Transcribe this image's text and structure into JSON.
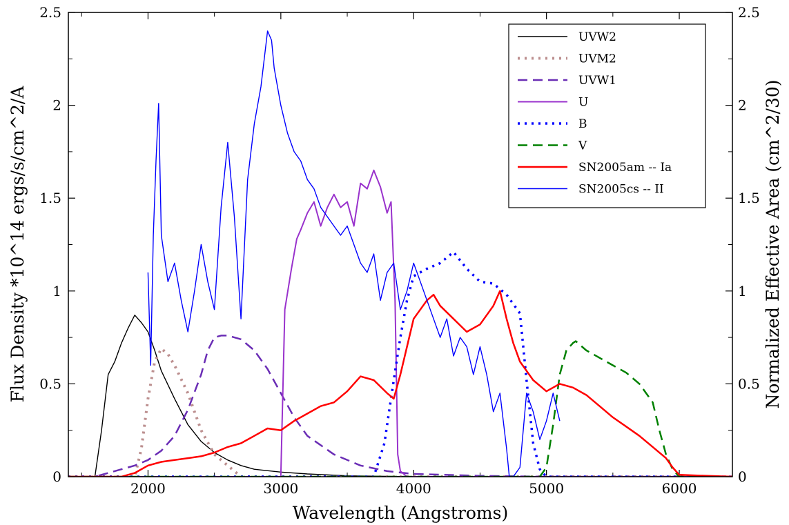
{
  "chart_data": {
    "type": "line",
    "xlabel": "Wavelength (Angstroms)",
    "ylabel": "Flux Density *10^14 ergs/s/cm^2/A",
    "ylabel_right": "Normalized Effective Area (cm^2/30)",
    "xlim": [
      1400,
      6400
    ],
    "ylim": [
      0,
      2.5
    ],
    "ylim_right": [
      0,
      2.5
    ],
    "x_ticks": [
      "2000",
      "3000",
      "4000",
      "5000",
      "6000"
    ],
    "y_ticks": [
      "0",
      "0.5",
      "1",
      "1.5",
      "2",
      "2.5"
    ],
    "y_ticks_right": [
      "0",
      "0.5",
      "1",
      "1.5",
      "2",
      "2.5"
    ],
    "legend_position": "top-right",
    "series": [
      {
        "name": "UVW2",
        "color": "#000000",
        "style": "solid",
        "width": 1.4,
        "x": [
          1400,
          1600,
          1650,
          1700,
          1750,
          1800,
          1850,
          1900,
          1950,
          2000,
          2050,
          2100,
          2200,
          2300,
          2400,
          2500,
          2600,
          2700,
          2800,
          3000,
          3200,
          3500,
          3800,
          4000,
          6400
        ],
        "y": [
          0,
          0,
          0.25,
          0.55,
          0.62,
          0.72,
          0.8,
          0.87,
          0.83,
          0.78,
          0.68,
          0.57,
          0.42,
          0.28,
          0.19,
          0.13,
          0.09,
          0.06,
          0.04,
          0.025,
          0.015,
          0.005,
          0.002,
          0,
          0
        ]
      },
      {
        "name": "UVM2",
        "color": "#bc8f8f",
        "style": "dotted",
        "width": 4,
        "x": [
          1400,
          1900,
          1950,
          2000,
          2050,
          2100,
          2150,
          2200,
          2300,
          2400,
          2500,
          2600,
          2700,
          6400
        ],
        "y": [
          0,
          0,
          0.15,
          0.42,
          0.62,
          0.69,
          0.66,
          0.6,
          0.45,
          0.25,
          0.12,
          0.06,
          0,
          0
        ]
      },
      {
        "name": "UVW1",
        "color": "#6a2db5",
        "style": "dashed",
        "width": 2.5,
        "x": [
          1400,
          1600,
          1700,
          1800,
          1900,
          2000,
          2100,
          2200,
          2300,
          2400,
          2450,
          2500,
          2550,
          2600,
          2700,
          2800,
          2900,
          3000,
          3100,
          3200,
          3400,
          3600,
          3800,
          4000,
          4500,
          5000,
          6400
        ],
        "y": [
          0,
          0,
          0.02,
          0.04,
          0.06,
          0.09,
          0.14,
          0.22,
          0.36,
          0.55,
          0.68,
          0.75,
          0.76,
          0.76,
          0.74,
          0.68,
          0.58,
          0.45,
          0.32,
          0.22,
          0.12,
          0.06,
          0.03,
          0.015,
          0.005,
          0,
          0
        ]
      },
      {
        "name": "U",
        "color": "#9932cc",
        "style": "solid",
        "width": 2,
        "x": [
          1400,
          3000,
          3030,
          3080,
          3120,
          3150,
          3200,
          3250,
          3300,
          3350,
          3400,
          3450,
          3500,
          3550,
          3600,
          3650,
          3700,
          3750,
          3800,
          3830,
          3860,
          3880,
          3900,
          3950,
          4000,
          6400
        ],
        "y": [
          0,
          0,
          0.9,
          1.12,
          1.28,
          1.33,
          1.42,
          1.48,
          1.35,
          1.45,
          1.52,
          1.45,
          1.48,
          1.35,
          1.58,
          1.55,
          1.65,
          1.56,
          1.42,
          1.48,
          0.95,
          0.12,
          0.03,
          0,
          0,
          0
        ]
      },
      {
        "name": "B",
        "color": "#0000ff",
        "style": "dotted",
        "width": 3.5,
        "x": [
          1400,
          3700,
          3780,
          3850,
          3900,
          3950,
          4000,
          4100,
          4200,
          4300,
          4400,
          4500,
          4600,
          4700,
          4800,
          4850,
          4900,
          4950,
          5000,
          6400
        ],
        "y": [
          0,
          0,
          0.18,
          0.52,
          0.75,
          0.95,
          1.08,
          1.12,
          1.15,
          1.21,
          1.12,
          1.05,
          1.04,
          0.98,
          0.88,
          0.52,
          0.18,
          0.04,
          0,
          0
        ]
      },
      {
        "name": "V",
        "color": "#008000",
        "style": "dashed",
        "width": 2.5,
        "x": [
          1400,
          4950,
          5000,
          5050,
          5100,
          5150,
          5200,
          5220,
          5300,
          5400,
          5500,
          5600,
          5700,
          5800,
          5850,
          5900,
          5950,
          6000,
          6400
        ],
        "y": [
          0,
          0,
          0.05,
          0.28,
          0.55,
          0.68,
          0.72,
          0.73,
          0.68,
          0.64,
          0.6,
          0.56,
          0.5,
          0.4,
          0.25,
          0.12,
          0.04,
          0,
          0
        ]
      },
      {
        "name": "SN2005am -- Ia",
        "color": "#ff0000",
        "style": "solid",
        "width": 2.5,
        "x": [
          1400,
          1800,
          1900,
          2000,
          2100,
          2200,
          2300,
          2400,
          2500,
          2600,
          2700,
          2800,
          2900,
          3000,
          3100,
          3200,
          3300,
          3400,
          3500,
          3600,
          3700,
          3800,
          3850,
          3900,
          3950,
          4000,
          4100,
          4150,
          4200,
          4300,
          4400,
          4500,
          4600,
          4650,
          4700,
          4750,
          4800,
          4900,
          5000,
          5100,
          5200,
          5300,
          5400,
          5500,
          5600,
          5700,
          5800,
          5900,
          5950,
          6000,
          6400
        ],
        "y": [
          0,
          0,
          0.02,
          0.06,
          0.08,
          0.09,
          0.1,
          0.11,
          0.13,
          0.16,
          0.18,
          0.22,
          0.26,
          0.25,
          0.3,
          0.34,
          0.38,
          0.4,
          0.46,
          0.54,
          0.52,
          0.45,
          0.42,
          0.55,
          0.7,
          0.85,
          0.95,
          0.98,
          0.92,
          0.85,
          0.78,
          0.82,
          0.92,
          1.0,
          0.85,
          0.72,
          0.62,
          0.52,
          0.46,
          0.5,
          0.48,
          0.44,
          0.38,
          0.32,
          0.27,
          0.22,
          0.16,
          0.1,
          0.05,
          0.01,
          0
        ]
      },
      {
        "name": "SN2005cs -- II",
        "color": "#0000ff",
        "style": "solid",
        "width": 1.4,
        "x": [
          2000,
          2020,
          2040,
          2060,
          2080,
          2100,
          2150,
          2200,
          2250,
          2300,
          2350,
          2400,
          2450,
          2500,
          2550,
          2600,
          2650,
          2700,
          2750,
          2800,
          2850,
          2900,
          2930,
          2950,
          3000,
          3050,
          3100,
          3150,
          3200,
          3250,
          3300,
          3350,
          3400,
          3450,
          3500,
          3550,
          3600,
          3650,
          3700,
          3750,
          3800,
          3850,
          3900,
          3950,
          4000,
          4050,
          4100,
          4150,
          4200,
          4250,
          4300,
          4350,
          4400,
          4450,
          4500,
          4550,
          4600,
          4650,
          4700,
          4720,
          4750,
          4800,
          4850,
          4900,
          4950,
          5000,
          5050,
          5100
        ],
        "y": [
          1.1,
          0.6,
          1.3,
          1.7,
          2.01,
          1.3,
          1.05,
          1.15,
          0.95,
          0.78,
          1.0,
          1.25,
          1.05,
          0.9,
          1.45,
          1.8,
          1.4,
          0.85,
          1.6,
          1.9,
          2.1,
          2.4,
          2.35,
          2.2,
          2.0,
          1.85,
          1.75,
          1.7,
          1.6,
          1.55,
          1.45,
          1.4,
          1.35,
          1.3,
          1.35,
          1.25,
          1.15,
          1.1,
          1.2,
          0.95,
          1.1,
          1.15,
          0.9,
          1.0,
          1.15,
          1.05,
          0.95,
          0.85,
          0.75,
          0.85,
          0.65,
          0.75,
          0.7,
          0.55,
          0.7,
          0.55,
          0.35,
          0.45,
          0.15,
          0,
          0,
          0.05,
          0.45,
          0.35,
          0.2,
          0.3,
          0.45,
          0.3
        ]
      }
    ]
  }
}
